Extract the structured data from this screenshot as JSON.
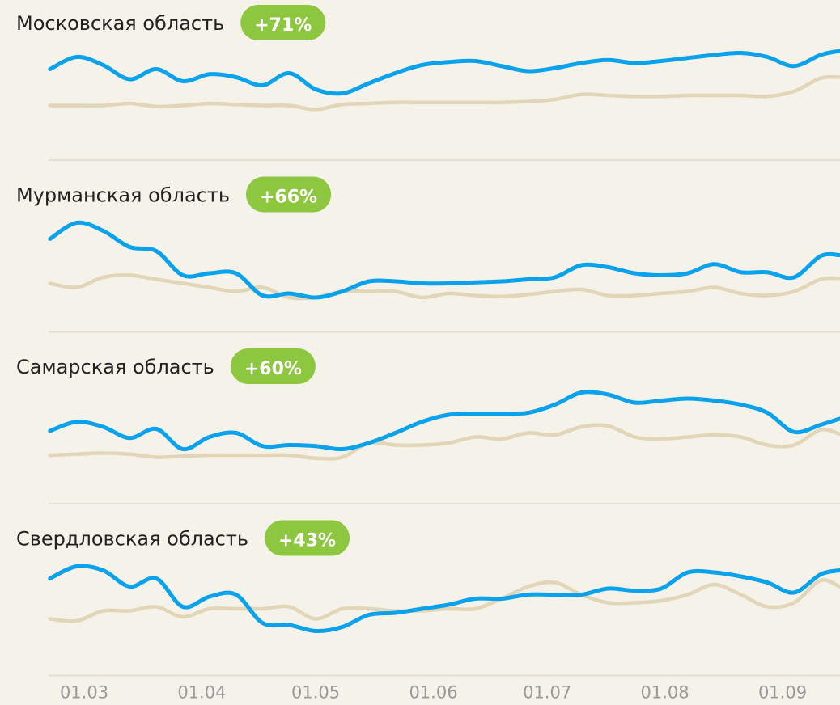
{
  "chart_data": [
    {
      "type": "line",
      "title": "Московская область",
      "annotation": "+71%",
      "x": [
        -9,
        -2,
        5,
        12,
        19,
        26,
        33,
        40,
        47,
        54,
        61,
        68,
        75,
        82,
        89,
        96,
        103,
        110,
        117,
        124,
        131,
        138,
        145,
        152,
        159,
        166,
        173,
        180,
        187,
        194,
        199
      ],
      "xlim": [
        -10,
        200
      ],
      "ylim": [
        0,
        110
      ],
      "series": [
        {
          "color": "#e2d6b8",
          "values": [
            46,
            46,
            46,
            48,
            45,
            46,
            48,
            47,
            46,
            46,
            42,
            47,
            48,
            49,
            49,
            49,
            49,
            49,
            50,
            52,
            57,
            56,
            55,
            55,
            56,
            56,
            56,
            55,
            60,
            73,
            74
          ]
        },
        {
          "color": "#0aa2ea",
          "values": [
            82,
            94,
            86,
            72,
            82,
            70,
            77,
            74,
            66,
            78,
            62,
            58,
            68,
            78,
            86,
            89,
            90,
            85,
            80,
            83,
            88,
            91,
            88,
            90,
            93,
            96,
            98,
            94,
            85,
            96,
            100
          ]
        }
      ]
    },
    {
      "type": "line",
      "title": "Мурманская область",
      "annotation": "+66%",
      "x": [
        -9,
        -2,
        5,
        12,
        19,
        26,
        33,
        40,
        47,
        54,
        61,
        68,
        75,
        82,
        89,
        96,
        103,
        110,
        117,
        124,
        131,
        138,
        145,
        152,
        159,
        166,
        173,
        180,
        187,
        194,
        199
      ],
      "xlim": [
        -10,
        200
      ],
      "ylim": [
        0,
        110
      ],
      "series": [
        {
          "color": "#e2d6b8",
          "values": [
            40,
            36,
            46,
            48,
            44,
            40,
            36,
            32,
            36,
            26,
            26,
            32,
            32,
            32,
            26,
            30,
            28,
            27,
            29,
            32,
            34,
            28,
            28,
            30,
            32,
            36,
            30,
            28,
            32,
            44,
            45
          ]
        },
        {
          "color": "#0aa2ea",
          "values": [
            84,
            100,
            92,
            76,
            72,
            48,
            50,
            50,
            28,
            30,
            26,
            32,
            42,
            42,
            40,
            40,
            41,
            42,
            44,
            46,
            58,
            56,
            50,
            48,
            50,
            59,
            51,
            51,
            46,
            67,
            68
          ]
        }
      ]
    },
    {
      "type": "line",
      "title": "Самарская область",
      "annotation": "+60%",
      "x": [
        -9,
        -2,
        5,
        12,
        19,
        26,
        33,
        40,
        47,
        54,
        61,
        68,
        75,
        82,
        89,
        96,
        103,
        110,
        117,
        124,
        131,
        138,
        145,
        152,
        159,
        166,
        173,
        180,
        187,
        194,
        199
      ],
      "xlim": [
        -10,
        200
      ],
      "ylim": [
        0,
        110
      ],
      "series": [
        {
          "color": "#e2d6b8",
          "values": [
            40,
            41,
            42,
            41,
            38,
            39,
            40,
            40,
            40,
            40,
            37,
            38,
            52,
            50,
            50,
            52,
            58,
            56,
            62,
            60,
            68,
            69,
            58,
            56,
            58,
            60,
            58,
            50,
            50,
            65,
            61
          ]
        },
        {
          "color": "#0aa2ea",
          "values": [
            64,
            73,
            68,
            57,
            66,
            46,
            58,
            62,
            49,
            50,
            49,
            46,
            52,
            62,
            73,
            80,
            81,
            81,
            82,
            90,
            102,
            100,
            92,
            94,
            96,
            94,
            90,
            82,
            63,
            70,
            76
          ]
        }
      ]
    },
    {
      "type": "line",
      "title": "Свердловская область",
      "annotation": "+43%",
      "x": [
        -9,
        -2,
        5,
        12,
        19,
        26,
        33,
        40,
        47,
        54,
        61,
        68,
        75,
        82,
        89,
        96,
        103,
        110,
        117,
        124,
        131,
        138,
        145,
        152,
        159,
        166,
        173,
        180,
        187,
        194,
        199
      ],
      "xlim": [
        -10,
        200
      ],
      "ylim": [
        0,
        110
      ],
      "xticks": [
        {
          "value": 0,
          "label": "01.03"
        },
        {
          "value": 31,
          "label": "01.04"
        },
        {
          "value": 61,
          "label": "01.05"
        },
        {
          "value": 92,
          "label": "01.06"
        },
        {
          "value": 122,
          "label": "01.07"
        },
        {
          "value": 153,
          "label": "01.08"
        },
        {
          "value": 184,
          "label": "01.09"
        }
      ],
      "series": [
        {
          "color": "#e2d6b8",
          "values": [
            48,
            46,
            56,
            56,
            60,
            50,
            58,
            58,
            58,
            60,
            48,
            58,
            58,
            56,
            56,
            58,
            58,
            68,
            80,
            84,
            72,
            64,
            64,
            66,
            72,
            82,
            72,
            60,
            64,
            86,
            80
          ]
        },
        {
          "color": "#0aa2ea",
          "values": [
            88,
            100,
            96,
            80,
            88,
            60,
            70,
            72,
            44,
            42,
            36,
            40,
            52,
            54,
            58,
            62,
            68,
            68,
            72,
            72,
            72,
            78,
            76,
            78,
            94,
            94,
            90,
            84,
            74,
            92,
            96
          ]
        }
      ]
    }
  ]
}
